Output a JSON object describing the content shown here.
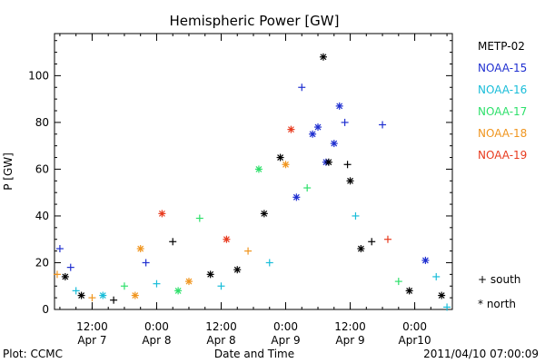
{
  "chart_data": {
    "type": "scatter",
    "title": "Hemispheric Power [GW]",
    "xlabel": "Date and Time",
    "ylabel": "P [GW]",
    "ylim": [
      0,
      118
    ],
    "xlim": [
      "2011-04-07 05:00",
      "2011-04-10 07:00"
    ],
    "yticks": [
      "0",
      "20",
      "40",
      "60",
      "80",
      "100"
    ],
    "xticks": [
      {
        "time": "2011-04-07 12:00",
        "top": "12:00",
        "bottom": "Apr 7"
      },
      {
        "time": "2011-04-08 00:00",
        "top": "0:00",
        "bottom": "Apr 8"
      },
      {
        "time": "2011-04-08 12:00",
        "top": "12:00",
        "bottom": "Apr 8"
      },
      {
        "time": "2011-04-09 00:00",
        "top": "0:00",
        "bottom": "Apr 9"
      },
      {
        "time": "2011-04-09 12:00",
        "top": "12:00",
        "bottom": "Apr 9"
      },
      {
        "time": "2011-04-10 00:00",
        "top": "0:00",
        "bottom": "Apr10"
      }
    ],
    "legend_position": "right",
    "series": [
      {
        "name": "METP-02",
        "color": "#000000"
      },
      {
        "name": "NOAA-15",
        "color": "#1f2fd0"
      },
      {
        "name": "NOAA-16",
        "color": "#19bdd9"
      },
      {
        "name": "NOAA-17",
        "color": "#2ee06b"
      },
      {
        "name": "NOAA-18",
        "color": "#f0951e"
      },
      {
        "name": "NOAA-19",
        "color": "#e83b1f"
      }
    ],
    "markers": [
      {
        "symbol": "+",
        "label": "south"
      },
      {
        "symbol": "*",
        "label": "north"
      }
    ],
    "points": [
      {
        "t": "2011-04-07 05:30",
        "y": 15,
        "s": "NOAA-18",
        "h": "south"
      },
      {
        "t": "2011-04-07 06:00",
        "y": 26,
        "s": "NOAA-15",
        "h": "south"
      },
      {
        "t": "2011-04-07 07:00",
        "y": 14,
        "s": "METP-02",
        "h": "north"
      },
      {
        "t": "2011-04-07 08:00",
        "y": 18,
        "s": "NOAA-15",
        "h": "south"
      },
      {
        "t": "2011-04-07 09:00",
        "y": 8,
        "s": "NOAA-16",
        "h": "south"
      },
      {
        "t": "2011-04-07 10:00",
        "y": 6,
        "s": "METP-02",
        "h": "north"
      },
      {
        "t": "2011-04-07 12:00",
        "y": 5,
        "s": "NOAA-18",
        "h": "south"
      },
      {
        "t": "2011-04-07 14:00",
        "y": 6,
        "s": "NOAA-16",
        "h": "north"
      },
      {
        "t": "2011-04-07 16:00",
        "y": 4,
        "s": "METP-02",
        "h": "south"
      },
      {
        "t": "2011-04-07 18:00",
        "y": 10,
        "s": "NOAA-17",
        "h": "south"
      },
      {
        "t": "2011-04-07 20:00",
        "y": 6,
        "s": "NOAA-18",
        "h": "north"
      },
      {
        "t": "2011-04-07 21:00",
        "y": 26,
        "s": "NOAA-18",
        "h": "north"
      },
      {
        "t": "2011-04-07 22:00",
        "y": 20,
        "s": "NOAA-15",
        "h": "south"
      },
      {
        "t": "2011-04-08 00:00",
        "y": 11,
        "s": "NOAA-16",
        "h": "south"
      },
      {
        "t": "2011-04-08 01:00",
        "y": 41,
        "s": "NOAA-19",
        "h": "north"
      },
      {
        "t": "2011-04-08 03:00",
        "y": 29,
        "s": "METP-02",
        "h": "south"
      },
      {
        "t": "2011-04-08 04:00",
        "y": 8,
        "s": "NOAA-17",
        "h": "north"
      },
      {
        "t": "2011-04-08 06:00",
        "y": 12,
        "s": "NOAA-18",
        "h": "north"
      },
      {
        "t": "2011-04-08 08:00",
        "y": 39,
        "s": "NOAA-17",
        "h": "south"
      },
      {
        "t": "2011-04-08 10:00",
        "y": 15,
        "s": "METP-02",
        "h": "north"
      },
      {
        "t": "2011-04-08 12:00",
        "y": 10,
        "s": "NOAA-16",
        "h": "south"
      },
      {
        "t": "2011-04-08 13:00",
        "y": 30,
        "s": "NOAA-19",
        "h": "north"
      },
      {
        "t": "2011-04-08 15:00",
        "y": 17,
        "s": "METP-02",
        "h": "north"
      },
      {
        "t": "2011-04-08 17:00",
        "y": 25,
        "s": "NOAA-18",
        "h": "south"
      },
      {
        "t": "2011-04-08 19:00",
        "y": 60,
        "s": "NOAA-17",
        "h": "north"
      },
      {
        "t": "2011-04-08 20:00",
        "y": 41,
        "s": "METP-02",
        "h": "north"
      },
      {
        "t": "2011-04-08 21:00",
        "y": 20,
        "s": "NOAA-16",
        "h": "south"
      },
      {
        "t": "2011-04-08 23:00",
        "y": 65,
        "s": "METP-02",
        "h": "north"
      },
      {
        "t": "2011-04-09 00:00",
        "y": 62,
        "s": "NOAA-18",
        "h": "north"
      },
      {
        "t": "2011-04-09 01:00",
        "y": 77,
        "s": "NOAA-19",
        "h": "north"
      },
      {
        "t": "2011-04-09 02:00",
        "y": 48,
        "s": "NOAA-15",
        "h": "north"
      },
      {
        "t": "2011-04-09 03:00",
        "y": 95,
        "s": "NOAA-15",
        "h": "south"
      },
      {
        "t": "2011-04-09 04:00",
        "y": 52,
        "s": "NOAA-17",
        "h": "south"
      },
      {
        "t": "2011-04-09 05:00",
        "y": 75,
        "s": "NOAA-15",
        "h": "north"
      },
      {
        "t": "2011-04-09 06:00",
        "y": 78,
        "s": "NOAA-15",
        "h": "north"
      },
      {
        "t": "2011-04-09 07:00",
        "y": 108,
        "s": "METP-02",
        "h": "north"
      },
      {
        "t": "2011-04-09 07:30",
        "y": 63,
        "s": "NOAA-15",
        "h": "north"
      },
      {
        "t": "2011-04-09 08:00",
        "y": 63,
        "s": "METP-02",
        "h": "north"
      },
      {
        "t": "2011-04-09 09:00",
        "y": 71,
        "s": "NOAA-15",
        "h": "north"
      },
      {
        "t": "2011-04-09 10:00",
        "y": 87,
        "s": "NOAA-15",
        "h": "north"
      },
      {
        "t": "2011-04-09 11:00",
        "y": 80,
        "s": "NOAA-15",
        "h": "south"
      },
      {
        "t": "2011-04-09 11:30",
        "y": 62,
        "s": "METP-02",
        "h": "south"
      },
      {
        "t": "2011-04-09 12:00",
        "y": 55,
        "s": "METP-02",
        "h": "north"
      },
      {
        "t": "2011-04-09 13:00",
        "y": 40,
        "s": "NOAA-16",
        "h": "south"
      },
      {
        "t": "2011-04-09 14:00",
        "y": 26,
        "s": "METP-02",
        "h": "north"
      },
      {
        "t": "2011-04-09 16:00",
        "y": 29,
        "s": "METP-02",
        "h": "south"
      },
      {
        "t": "2011-04-09 18:00",
        "y": 79,
        "s": "NOAA-15",
        "h": "south"
      },
      {
        "t": "2011-04-09 19:00",
        "y": 30,
        "s": "NOAA-19",
        "h": "south"
      },
      {
        "t": "2011-04-09 21:00",
        "y": 12,
        "s": "NOAA-17",
        "h": "south"
      },
      {
        "t": "2011-04-09 23:00",
        "y": 8,
        "s": "METP-02",
        "h": "north"
      },
      {
        "t": "2011-04-10 02:00",
        "y": 21,
        "s": "NOAA-15",
        "h": "north"
      },
      {
        "t": "2011-04-10 04:00",
        "y": 14,
        "s": "NOAA-16",
        "h": "south"
      },
      {
        "t": "2011-04-10 05:00",
        "y": 6,
        "s": "METP-02",
        "h": "north"
      },
      {
        "t": "2011-04-10 06:00",
        "y": 1,
        "s": "NOAA-16",
        "h": "south"
      }
    ]
  },
  "footer": {
    "left": "Plot: CCMC",
    "right": "2011/04/10 07:00:09"
  }
}
